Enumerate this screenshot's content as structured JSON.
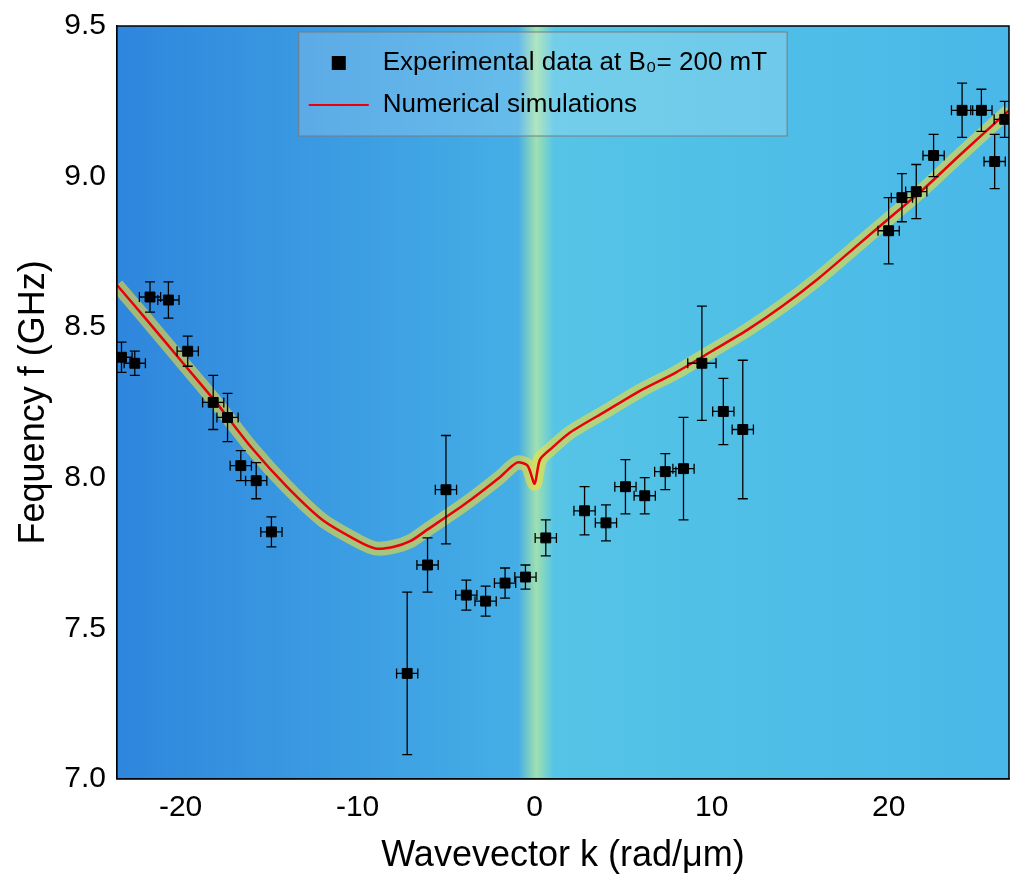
{
  "chart_data": {
    "type": "scatter",
    "x_label": "Wavevector k (rad/μm)",
    "y_label": "Fequency f (GHz)",
    "xlim": [
      -23.6,
      26.8
    ],
    "ylim": [
      7.0,
      9.5
    ],
    "xticks": [
      -20,
      -10,
      0,
      10,
      20
    ],
    "yticks": [
      {
        "value": 7.0,
        "label": "7.0"
      },
      {
        "value": 7.5,
        "label": "7.5"
      },
      {
        "value": 8.0,
        "label": "8.0"
      },
      {
        "value": 8.5,
        "label": "8.5"
      },
      {
        "value": 9.0,
        "label": "9.0"
      },
      {
        "value": 9.5,
        "label": "9.5"
      }
    ],
    "grid": false,
    "legend": "upper center",
    "series": [
      {
        "name": "Experimental data at B₀= 200 mT",
        "type": "scatter",
        "color": "#000000",
        "marker": "square",
        "x": [
          -23.34,
          -22.59,
          -21.73,
          -20.69,
          -19.6,
          -18.16,
          -17.35,
          -16.6,
          -15.73,
          -14.87,
          -7.2,
          -6.05,
          -5.01,
          -3.86,
          -2.77,
          -1.67,
          -0.52,
          0.63,
          2.82,
          4.03,
          5.13,
          6.22,
          7.38,
          8.41,
          9.45,
          10.66,
          11.76,
          20.0,
          20.75,
          21.56,
          22.54,
          24.15,
          25.24,
          25.99,
          26.56
        ],
        "values": [
          8.4,
          8.38,
          8.6,
          8.59,
          8.42,
          8.25,
          8.2,
          8.04,
          7.99,
          7.82,
          7.35,
          7.71,
          7.96,
          7.61,
          7.59,
          7.65,
          7.67,
          7.8,
          7.89,
          7.85,
          7.97,
          7.94,
          8.02,
          8.03,
          8.38,
          8.22,
          8.16,
          8.82,
          8.93,
          8.95,
          9.07,
          9.22,
          9.22,
          9.05,
          9.19
        ],
        "x_error": [
          0.6,
          0.6,
          0.6,
          0.6,
          0.6,
          0.6,
          0.6,
          0.6,
          0.6,
          0.6,
          0.6,
          0.6,
          0.6,
          0.6,
          0.6,
          0.6,
          0.6,
          0.6,
          0.6,
          0.6,
          0.6,
          0.6,
          0.6,
          0.6,
          0.8,
          0.6,
          0.6,
          0.6,
          0.6,
          0.6,
          0.6,
          0.6,
          0.6,
          0.6,
          0.6
        ],
        "y_error": [
          0.05,
          0.04,
          0.05,
          0.06,
          0.05,
          0.09,
          0.08,
          0.05,
          0.06,
          0.05,
          0.27,
          0.09,
          0.18,
          0.05,
          0.05,
          0.05,
          0.04,
          0.06,
          0.08,
          0.06,
          0.09,
          0.06,
          0.06,
          0.17,
          0.19,
          0.11,
          0.23,
          0.11,
          0.08,
          0.09,
          0.07,
          0.09,
          0.07,
          0.09,
          0.06
        ]
      },
      {
        "name": "Numerical simulations",
        "type": "line",
        "color": "#e8000b",
        "line_style": "solid",
        "x": [
          -23.6,
          -22,
          -20,
          -18,
          -16,
          -14,
          -12,
          -10,
          -9,
          -8,
          -7,
          -6,
          -4,
          -2,
          -1,
          -0.4,
          0,
          0.3,
          1,
          2,
          4,
          6,
          8,
          10,
          12,
          14,
          16,
          18,
          20,
          22,
          24,
          26.8
        ],
        "values": [
          8.64,
          8.53,
          8.39,
          8.25,
          8.1,
          7.97,
          7.86,
          7.79,
          7.765,
          7.77,
          7.79,
          7.83,
          7.91,
          8.0,
          8.05,
          8.04,
          7.98,
          8.06,
          8.1,
          8.15,
          8.22,
          8.29,
          8.35,
          8.42,
          8.49,
          8.57,
          8.66,
          8.76,
          8.86,
          8.96,
          9.07,
          9.22
        ]
      }
    ]
  }
}
